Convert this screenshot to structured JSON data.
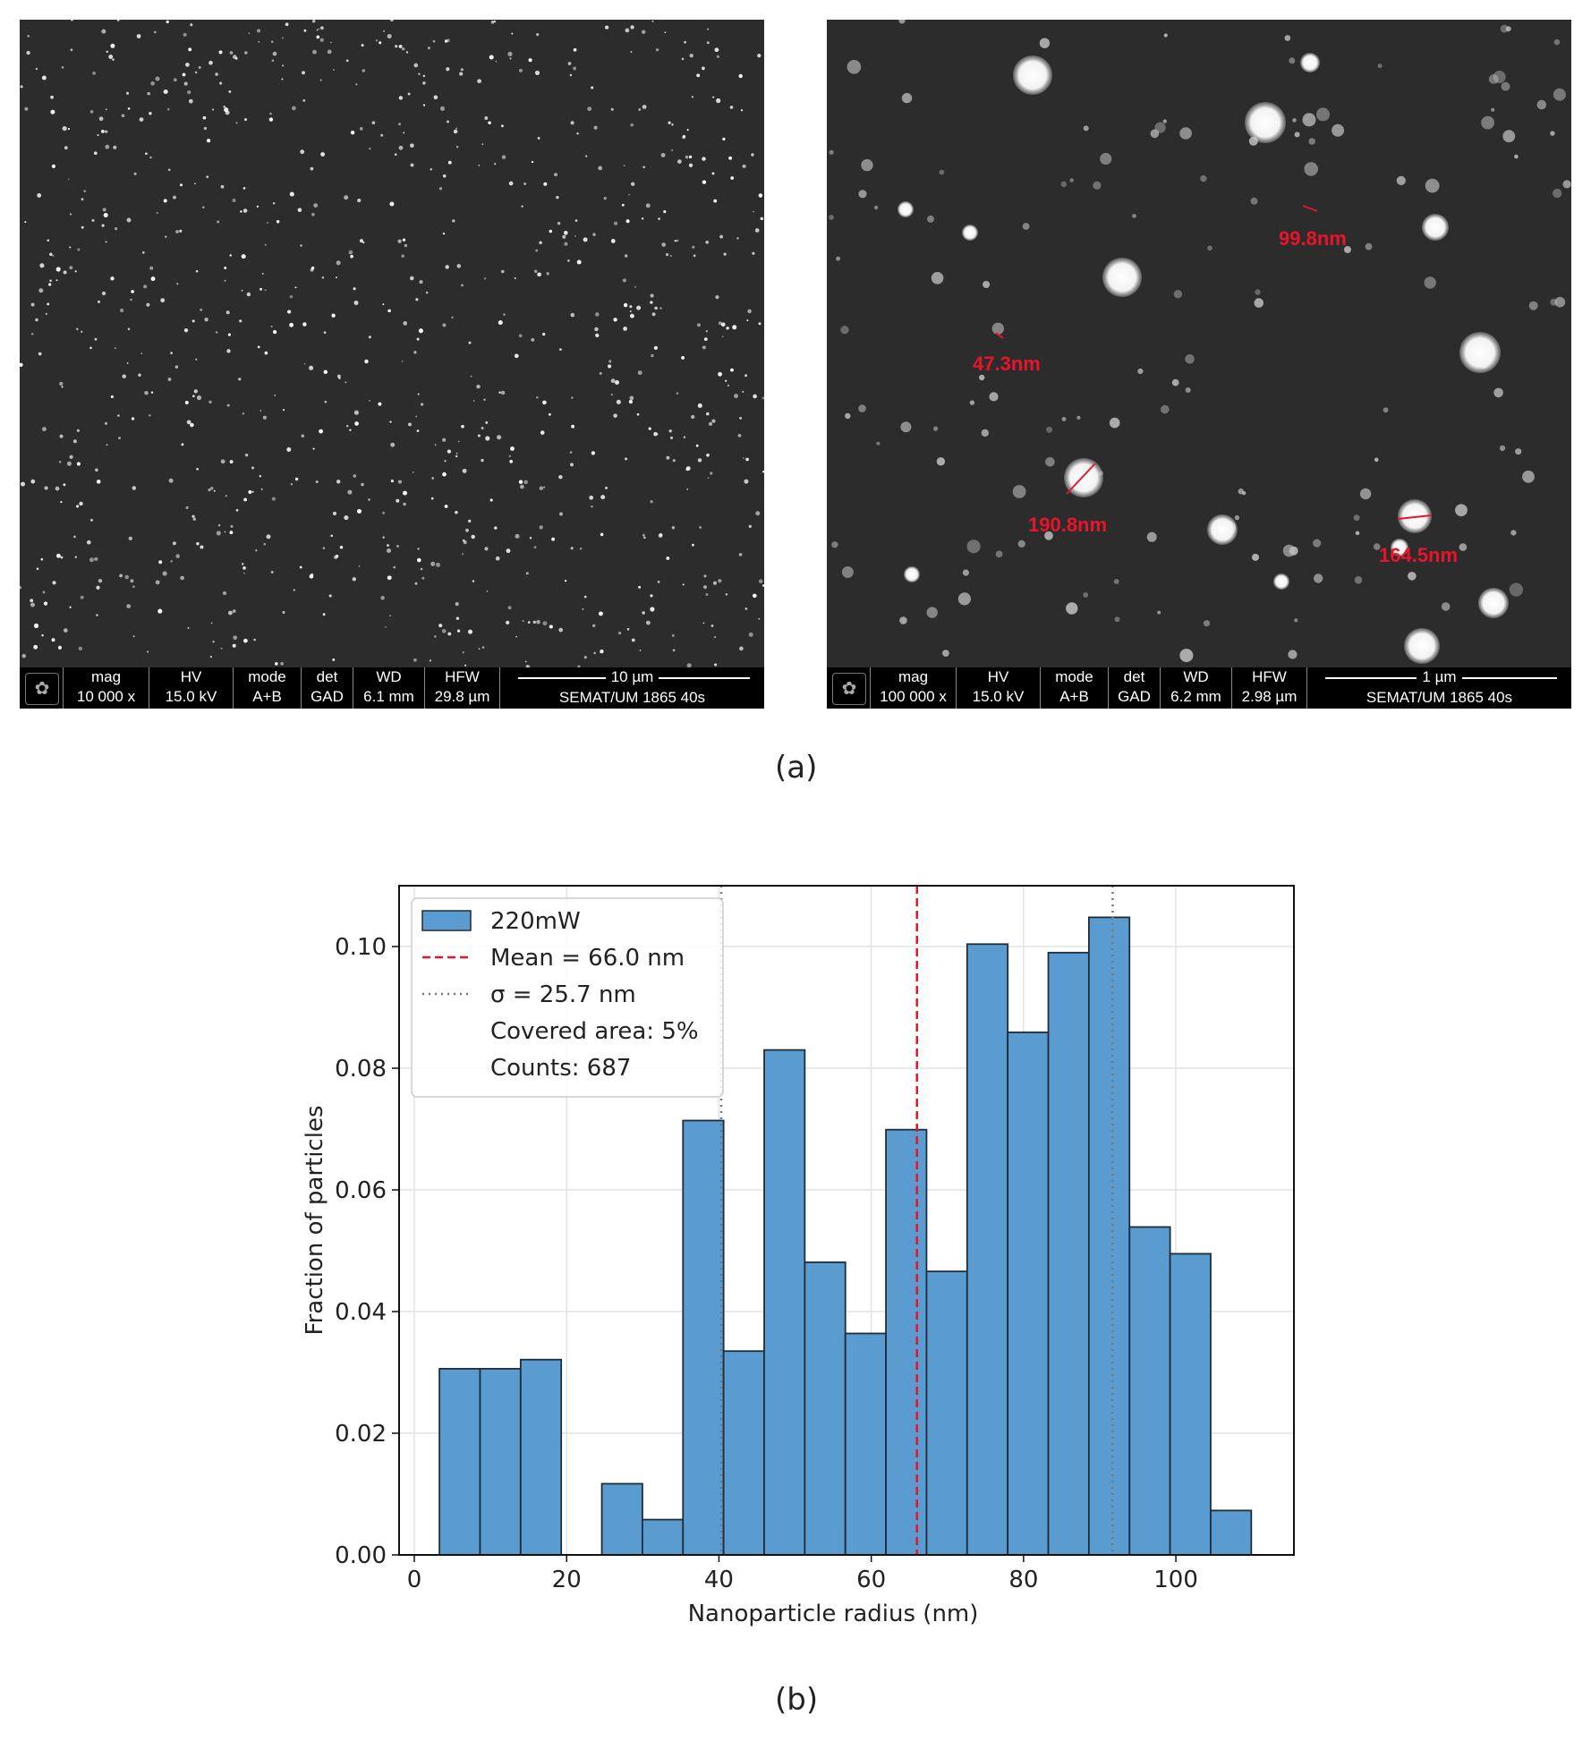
{
  "panel_a": {
    "label": "(a)",
    "left_image": {
      "infobar": {
        "cells": [
          {
            "name": "mag",
            "header": "mag",
            "value": "10 000 x"
          },
          {
            "name": "hv",
            "header": "HV",
            "value": "15.0 kV"
          },
          {
            "name": "mode",
            "header": "mode",
            "value": "A+B"
          },
          {
            "name": "det",
            "header": "det",
            "value": "GAD"
          },
          {
            "name": "wd",
            "header": "WD",
            "value": "6.1 mm"
          },
          {
            "name": "hfw",
            "header": "HFW",
            "value": "29.8 µm"
          }
        ],
        "scale_label": "10 µm",
        "lab": "SEMAT/UM  1865 40s"
      }
    },
    "right_image": {
      "infobar": {
        "cells": [
          {
            "name": "mag",
            "header": "mag",
            "value": "100 000 x"
          },
          {
            "name": "hv",
            "header": "HV",
            "value": "15.0 kV"
          },
          {
            "name": "mode",
            "header": "mode",
            "value": "A+B"
          },
          {
            "name": "det",
            "header": "det",
            "value": "GAD"
          },
          {
            "name": "wd",
            "header": "WD",
            "value": "6.2 mm"
          },
          {
            "name": "hfw",
            "header": "HFW",
            "value": "2.98 µm"
          }
        ],
        "scale_label": "1 µm",
        "lab": "SEMAT/UM  1865 40s"
      },
      "measurements": [
        "99.8nm",
        "47.3nm",
        "190.8nm",
        "164.5nm"
      ]
    }
  },
  "panel_b": {
    "label": "(b)"
  },
  "chart_data": {
    "type": "bar",
    "xlabel": "Nanoparticle radius (nm)",
    "ylabel": "Fraction of particles",
    "xlim": [
      -2,
      115.5
    ],
    "ylim": [
      0,
      0.11
    ],
    "xticks": [
      0,
      20,
      40,
      60,
      80,
      100
    ],
    "yticks": [
      0.0,
      0.02,
      0.04,
      0.06,
      0.08,
      0.1
    ],
    "ytick_labels": [
      "0.00",
      "0.02",
      "0.04",
      "0.06",
      "0.08",
      "0.10"
    ],
    "grid": true,
    "bin_width": 5.33,
    "bin_edges_start": 3.3,
    "values": [
      0.0306,
      0.0306,
      0.0321,
      0,
      0.0117,
      0.0058,
      0.0714,
      0.0335,
      0.083,
      0.0481,
      0.0364,
      0.0699,
      0.0466,
      0.1004,
      0.0859,
      0.099,
      0.1048,
      0.0539,
      0.0495,
      0.0073
    ],
    "bar_color": "#5a9bd0",
    "mean": 66.0,
    "mean_color": "#e8152a",
    "sigma_lines": [
      40.3,
      91.7
    ],
    "sigma_color": "#777777",
    "legend": {
      "placement": "upper-left",
      "entries": [
        "220mW",
        "Mean = 66.0 nm",
        "σ = 25.7 nm",
        "Covered area: 5%",
        "Counts: 687"
      ]
    }
  }
}
